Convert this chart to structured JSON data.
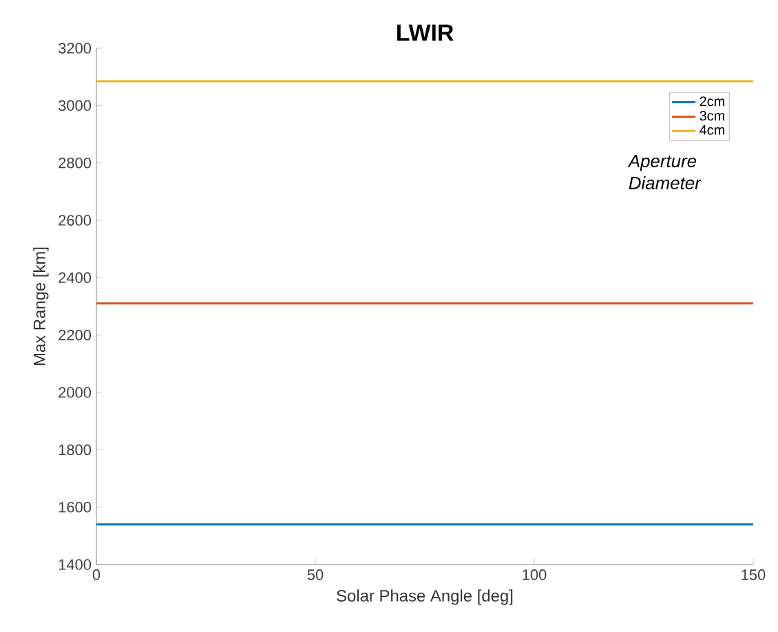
{
  "chart_data": {
    "type": "line",
    "title": "LWIR",
    "xlabel": "Solar Phase Angle [deg]",
    "ylabel": "Max Range [km]",
    "x": [
      0,
      150
    ],
    "series": [
      {
        "name": "2cm",
        "color": "#0072bd",
        "values": [
          1540,
          1540
        ]
      },
      {
        "name": "3cm",
        "color": "#d95319",
        "values": [
          2310,
          2310
        ]
      },
      {
        "name": "4cm",
        "color": "#edb120",
        "values": [
          3085,
          3085
        ]
      }
    ],
    "xlim": [
      0,
      150
    ],
    "xticks": [
      0,
      50,
      100,
      150
    ],
    "ylim": [
      1400,
      3200
    ],
    "yticks": [
      1400,
      1600,
      1800,
      2000,
      2200,
      2400,
      2600,
      2800,
      3000,
      3200
    ],
    "legend": "top right",
    "annotations": [
      "Aperture Diameter"
    ]
  }
}
